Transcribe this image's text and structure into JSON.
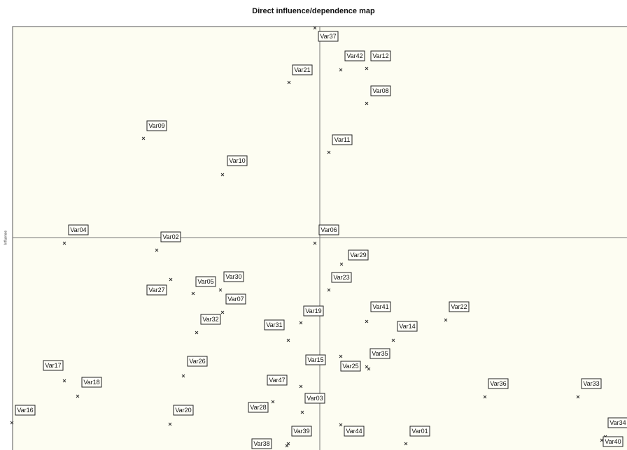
{
  "title": "Direct influence/dependence map",
  "axis_label": "Influence",
  "nodes": [
    {
      "label": "Var37"
    },
    {
      "label": "Var42"
    },
    {
      "label": "Var12"
    },
    {
      "label": "Var21"
    },
    {
      "label": "Var08"
    },
    {
      "label": "Var09"
    },
    {
      "label": "Var11"
    },
    {
      "label": "Var10"
    },
    {
      "label": "Var04"
    },
    {
      "label": "Var02"
    },
    {
      "label": "Var06"
    },
    {
      "label": "Var29"
    },
    {
      "label": "Var23"
    },
    {
      "label": "Var05"
    },
    {
      "label": "Var30"
    },
    {
      "label": "Var27"
    },
    {
      "label": "Var07"
    },
    {
      "label": "Var19"
    },
    {
      "label": "Var41"
    },
    {
      "label": "Var22"
    },
    {
      "label": "Var32"
    },
    {
      "label": "Var31"
    },
    {
      "label": "Var14"
    },
    {
      "label": "Var35"
    },
    {
      "label": "Var15"
    },
    {
      "label": "Var26"
    },
    {
      "label": "Var25"
    },
    {
      "label": "Var17"
    },
    {
      "label": "Var18"
    },
    {
      "label": "Var47"
    },
    {
      "label": "Var36"
    },
    {
      "label": "Var33"
    },
    {
      "label": "Var03"
    },
    {
      "label": "Var28"
    },
    {
      "label": "Var16"
    },
    {
      "label": "Var20"
    },
    {
      "label": "Var39"
    },
    {
      "label": "Var44"
    },
    {
      "label": "Var01"
    },
    {
      "label": "Var38"
    },
    {
      "label": "Var34"
    },
    {
      "label": "Var40"
    }
  ]
}
